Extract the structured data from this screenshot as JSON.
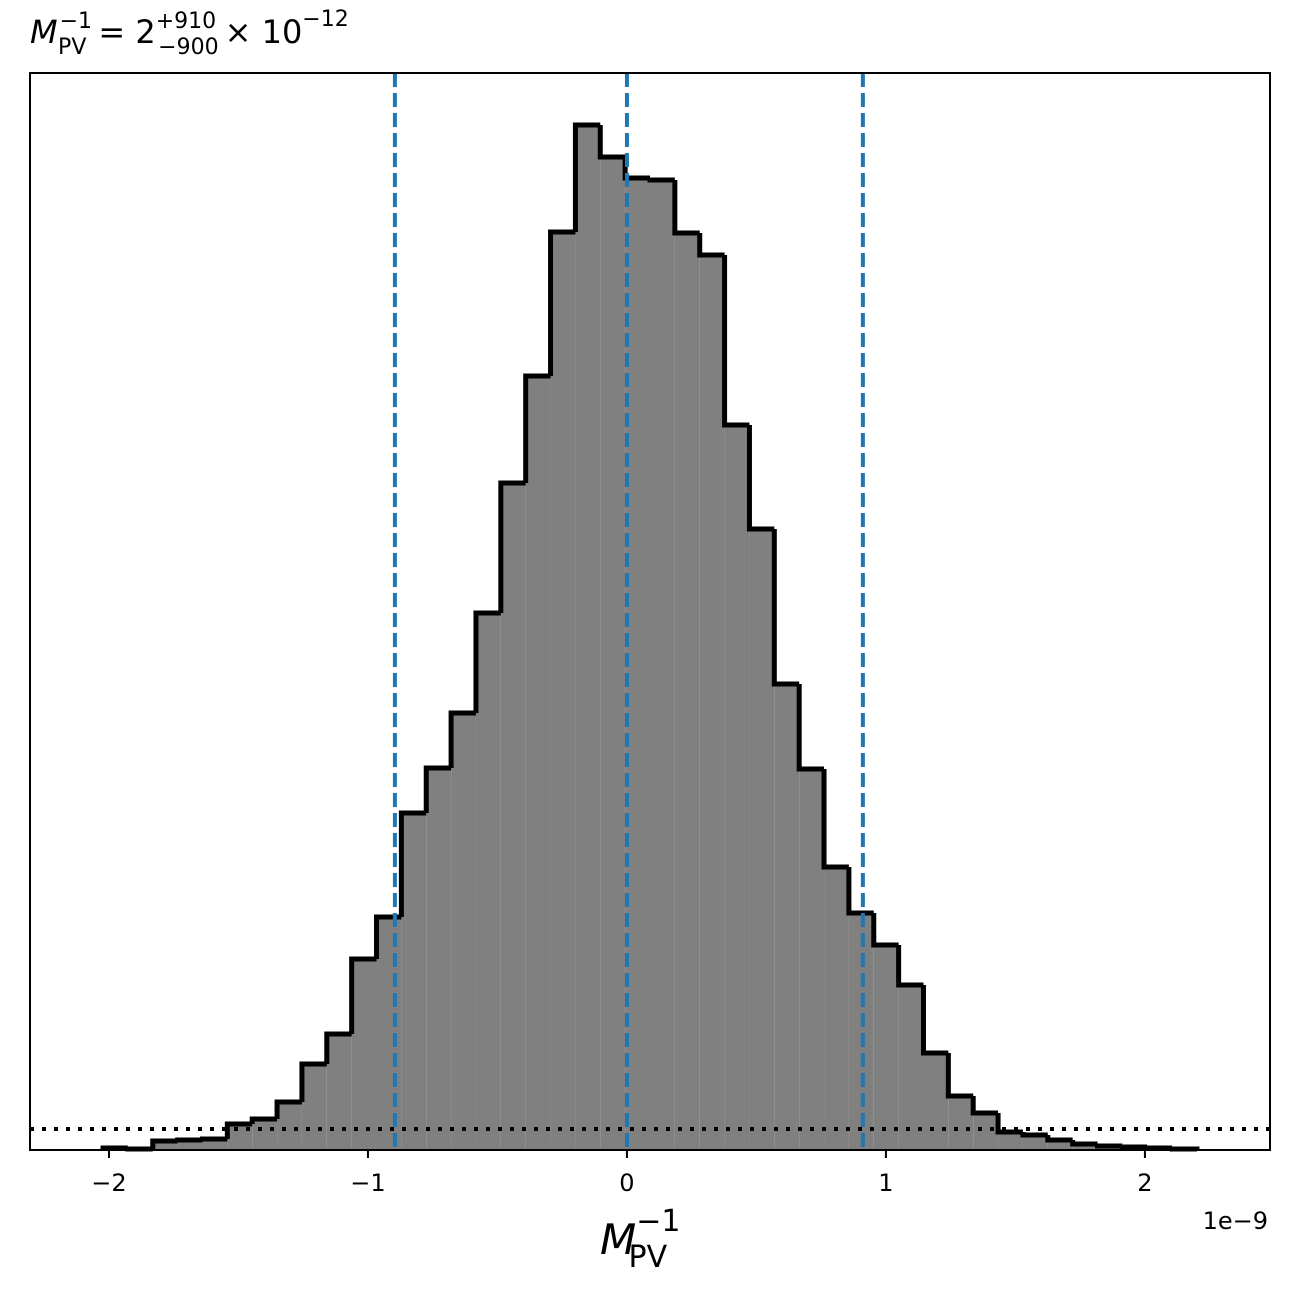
{
  "chart_data": {
    "type": "histogram",
    "title": {
      "symbol": "M",
      "sub": "PV",
      "sup": "−1",
      "rest": "= 2",
      "upper": "+910",
      "lower": "−900",
      "times": "× 10",
      "exp": "−12"
    },
    "xlabel": {
      "symbol": "M",
      "sub": "PV",
      "sup": "−1"
    },
    "x_offset_label": "1e−9",
    "bins": [
      -2.023,
      -1.927,
      -1.831,
      -1.735,
      -1.639,
      -1.543,
      -1.447,
      -1.351,
      -1.255,
      -1.159,
      -1.063,
      -0.967,
      -0.871,
      -0.775,
      -0.679,
      -0.583,
      -0.487,
      -0.391,
      -0.295,
      -0.199,
      -0.103,
      -0.007,
      0.089,
      0.185,
      0.281,
      0.377,
      0.473,
      0.569,
      0.665,
      0.761,
      0.857,
      0.953,
      1.049,
      1.145,
      1.241,
      1.337,
      1.433,
      1.529,
      1.625,
      1.721,
      1.817,
      1.913,
      2.009,
      2.105,
      2.201
    ],
    "values": [
      2,
      1,
      9,
      10,
      11,
      26,
      31,
      48,
      86,
      116,
      191,
      233,
      337,
      382,
      437,
      537,
      667,
      774,
      918,
      1025,
      993,
      972,
      970,
      917,
      895,
      725,
      621,
      466,
      381,
      283,
      237,
      205,
      165,
      97,
      54,
      37,
      18,
      15,
      10,
      6,
      4,
      3,
      2,
      1
    ],
    "color": "#808080",
    "edge_color": "#000000",
    "xlim": [
      -2.305,
      2.483
    ],
    "ylim": [
      0,
      1077
    ],
    "xticks": [
      {
        "value": -2,
        "label": "−2"
      },
      {
        "value": -1,
        "label": "−1"
      },
      0,
      1,
      2
    ],
    "vlines": [
      -0.896,
      0,
      0.911
    ],
    "vline_color": "#1f77b4",
    "hline": 21,
    "hline_color": "#000000"
  }
}
